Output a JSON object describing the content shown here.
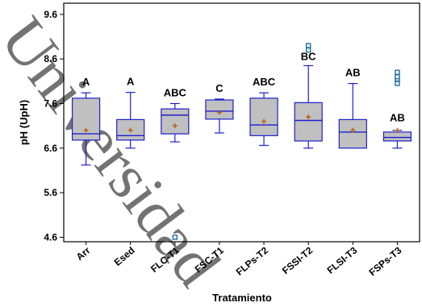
{
  "chart_data": {
    "type": "box",
    "xlabel": "Tratamiento",
    "ylabel": "pH (UpH)",
    "ylim": [
      4.5,
      9.85
    ],
    "yticks": [
      4.6,
      5.6,
      6.6,
      7.6,
      8.6,
      9.6
    ],
    "ytick_labels": [
      "4.6",
      "5.6",
      "6.6",
      "7.6",
      "8.6",
      "9.6"
    ],
    "grid": false,
    "box_color": "#1f1fcc",
    "box_fill": "#c0c0c0",
    "mean_color": "#b5651d",
    "outlier_color": "#1f6fa0",
    "categories": [
      "Arr",
      "Esed",
      "FLC-T1",
      "FSC-T1",
      "FLPs-T2",
      "FSSI-T2",
      "FLSI-T3",
      "FSPs-T3"
    ],
    "boxes": [
      {
        "min": 6.22,
        "q1": 6.78,
        "median": 6.92,
        "q3": 7.72,
        "max": 7.84,
        "mean": 7.0,
        "outliers": []
      },
      {
        "min": 6.6,
        "q1": 6.78,
        "median": 6.88,
        "q3": 7.24,
        "max": 7.85,
        "mean": 7.0,
        "outliers": []
      },
      {
        "min": 6.74,
        "q1": 6.92,
        "median": 7.34,
        "q3": 7.48,
        "max": 7.6,
        "mean": 7.1,
        "outliers": [
          4.6
        ]
      },
      {
        "min": 6.94,
        "q1": 7.25,
        "median": 7.43,
        "q3": 7.68,
        "max": 7.7,
        "mean": 7.4,
        "outliers": []
      },
      {
        "min": 6.66,
        "q1": 6.88,
        "median": 7.12,
        "q3": 7.72,
        "max": 7.84,
        "mean": 7.2,
        "outliers": []
      },
      {
        "min": 6.6,
        "q1": 6.76,
        "median": 7.22,
        "q3": 7.62,
        "max": 8.45,
        "mean": 7.3,
        "outliers": [
          8.8,
          8.9
        ]
      },
      {
        "min": 6.6,
        "q1": 6.6,
        "median": 6.96,
        "q3": 7.24,
        "max": 8.05,
        "mean": 7.0,
        "outliers": []
      },
      {
        "min": 6.6,
        "q1": 6.76,
        "median": 6.84,
        "q3": 6.96,
        "max": 7.0,
        "mean": 7.0,
        "outliers": [
          8.05,
          8.15,
          8.2,
          8.3
        ]
      }
    ],
    "group_letters": [
      "A",
      "A",
      "ABC",
      "C",
      "ABC",
      "BC",
      "AB",
      "AB"
    ]
  },
  "watermark": "Universidad"
}
